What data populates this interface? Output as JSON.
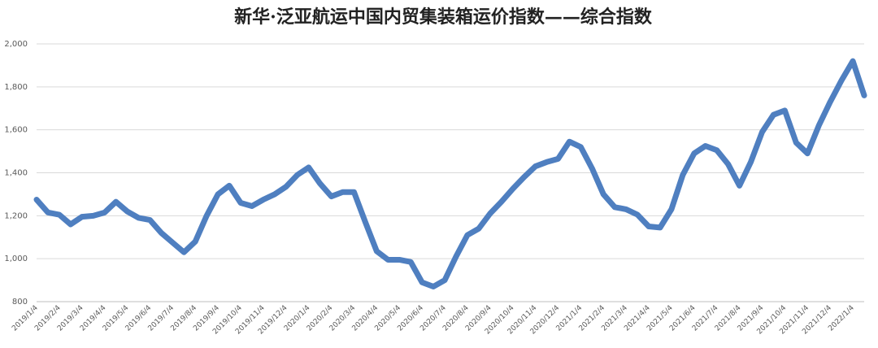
{
  "chart_data": {
    "type": "line",
    "title": "新华·泛亚航运中国内贸集装箱运价指数——综合指数",
    "categories": [
      "2019/1/4",
      null,
      "2019/2/4",
      null,
      "2019/3/4",
      null,
      "2019/4/4",
      null,
      "2019/5/4",
      null,
      "2019/6/4",
      null,
      "2019/7/4",
      null,
      "2019/8/4",
      null,
      "2019/9/4",
      null,
      "2019/10/4",
      null,
      "2019/11/4",
      null,
      "2019/12/4",
      null,
      "2020/1/4",
      null,
      "2020/2/4",
      null,
      "2020/3/4",
      null,
      "2020/4/4",
      null,
      "2020/5/4",
      null,
      "2020/6/4",
      null,
      "2020/7/4",
      null,
      "2020/8/4",
      null,
      "2020/9/4",
      null,
      "2020/10/4",
      null,
      "2020/11/4",
      null,
      "2020/12/4",
      null,
      "2021/1/4",
      null,
      "2021/2/4",
      null,
      "2021/3/4",
      null,
      "2021/4/4",
      null,
      "2021/5/4",
      null,
      "2021/6/4",
      null,
      "2021/7/4",
      null,
      "2021/8/4",
      null,
      "2021/9/4",
      null,
      "2021/10/4",
      null,
      "2021/11/4",
      null,
      "2021/12/4",
      null,
      "2022/1/4",
      null
    ],
    "series": [
      {
        "name": "综合指数",
        "color": "#4f7fc0",
        "values": [
          1275,
          1215,
          1205,
          1160,
          1195,
          1200,
          1215,
          1265,
          1220,
          1190,
          1180,
          1120,
          1075,
          1030,
          1080,
          1200,
          1300,
          1340,
          1260,
          1245,
          1275,
          1300,
          1335,
          1390,
          1425,
          1350,
          1290,
          1310,
          1310,
          1170,
          1035,
          995,
          995,
          985,
          890,
          870,
          900,
          1010,
          1110,
          1140,
          1210,
          1265,
          1325,
          1380,
          1430,
          1450,
          1465,
          1545,
          1520,
          1420,
          1300,
          1240,
          1230,
          1205,
          1150,
          1145,
          1230,
          1390,
          1490,
          1525,
          1505,
          1440,
          1340,
          1450,
          1590,
          1670,
          1690,
          1540,
          1490,
          1620,
          1730,
          1830,
          1920,
          1760
        ]
      }
    ],
    "ylim": [
      800,
      2000
    ],
    "yticks": [
      800,
      {
        "value": 1000,
        "label": "1,000"
      },
      {
        "value": 1200,
        "label": "1,200"
      },
      {
        "value": 1400,
        "label": "1,400"
      },
      {
        "value": 1600,
        "label": "1,600"
      },
      {
        "value": 1800,
        "label": "1,800"
      },
      {
        "value": 2000,
        "label": "2,000"
      }
    ],
    "grid": true
  }
}
